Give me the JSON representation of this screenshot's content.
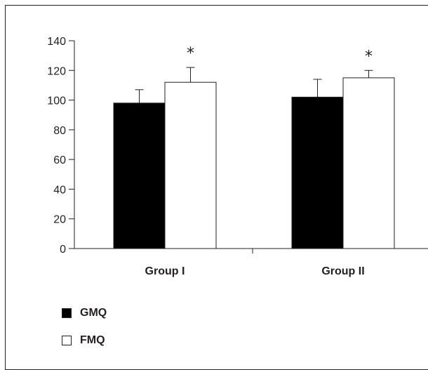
{
  "chart_data": {
    "type": "bar",
    "categories": [
      "Group I",
      "Group II"
    ],
    "series": [
      {
        "name": "GMQ",
        "values": [
          98,
          102
        ],
        "errors": [
          9,
          12
        ],
        "color": "#000000"
      },
      {
        "name": "FMQ",
        "values": [
          112,
          115
        ],
        "errors": [
          10,
          5
        ],
        "color": "#ffffff"
      }
    ],
    "annotations": [
      "*",
      "*"
    ],
    "ylim": [
      0,
      140
    ],
    "yticks": [
      0,
      20,
      40,
      60,
      80,
      100,
      120,
      140
    ],
    "grid": false,
    "legend_placement": "bottom-left"
  }
}
